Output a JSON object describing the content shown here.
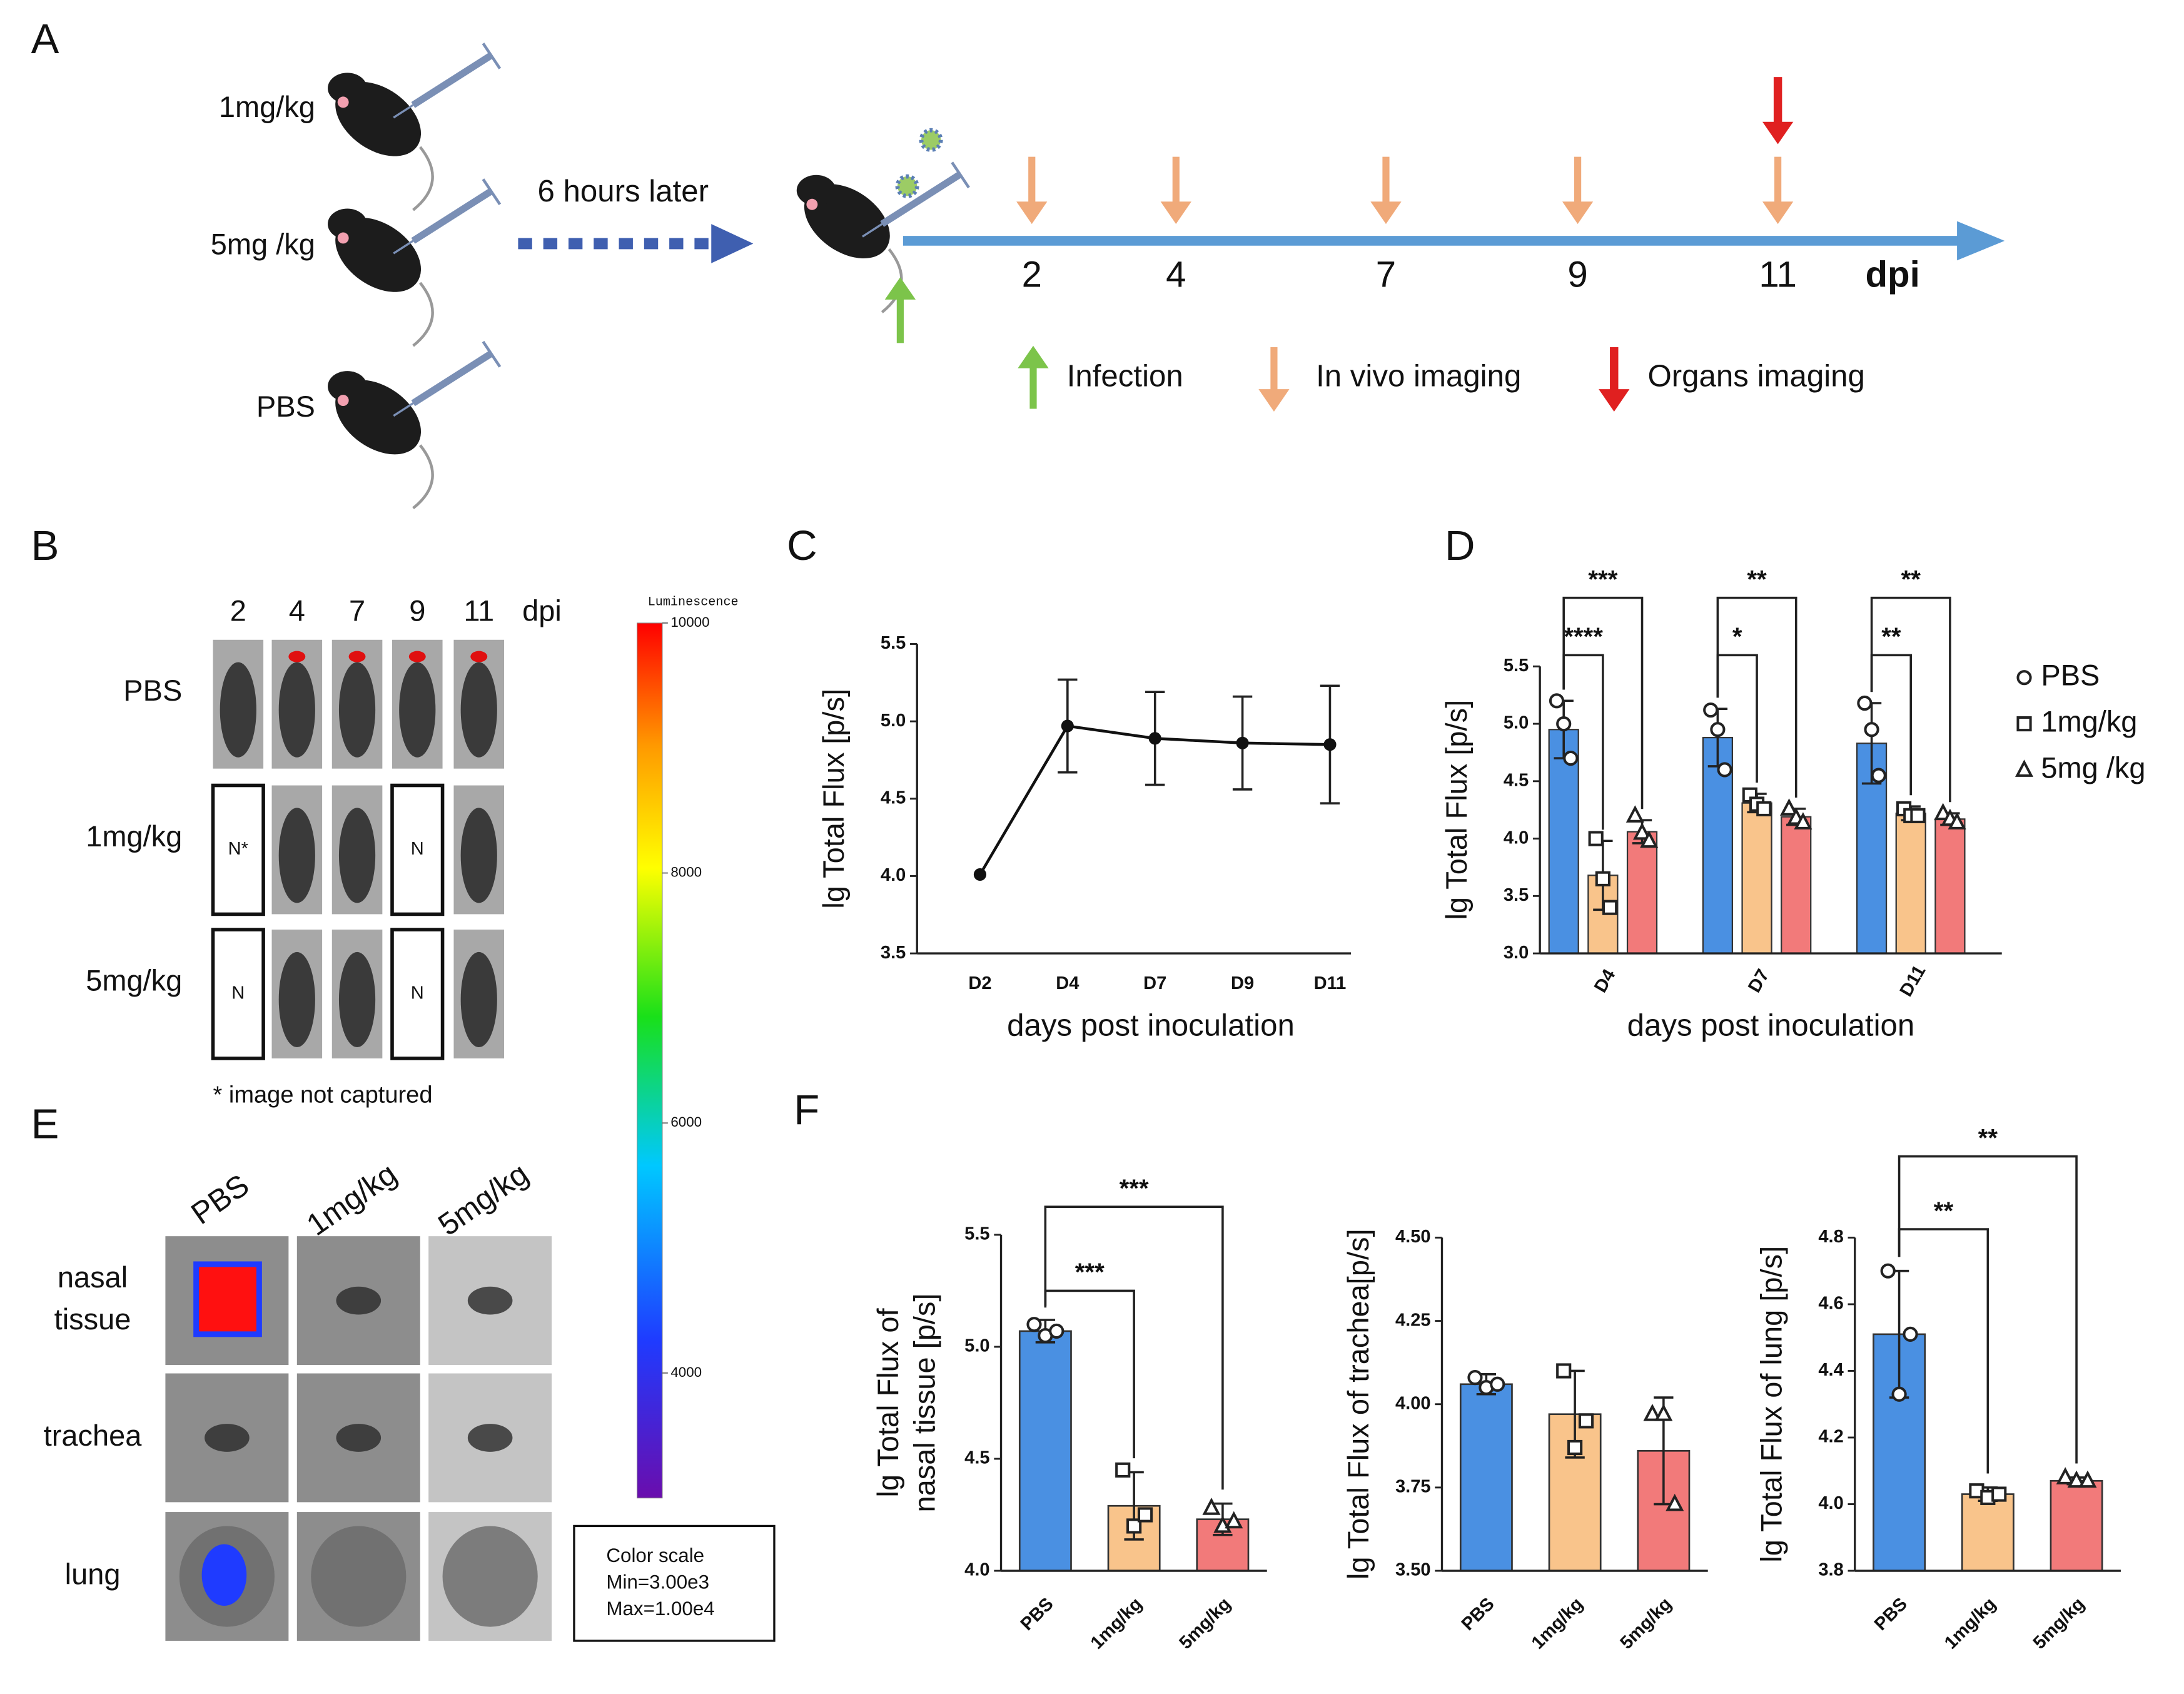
{
  "panel_labels": [
    "A",
    "B",
    "C",
    "D",
    "E",
    "F"
  ],
  "timeline": {
    "groups": [
      "1mg/kg",
      "5mg /kg",
      "PBS"
    ],
    "delay": "6 hours later",
    "days": [
      "2",
      "4",
      "7",
      "9",
      "11"
    ],
    "unit": "dpi",
    "legend": [
      "Infection",
      "In vivo imaging",
      "Organs imaging"
    ]
  },
  "imaging": {
    "days": [
      "2",
      "4",
      "7",
      "9",
      "11"
    ],
    "unit": "dpi",
    "groups": [
      "PBS",
      "1mg/kg",
      "5mg/kg"
    ],
    "missing": [
      "N*",
      "N",
      "N",
      "N"
    ],
    "footnote": "* image not captured",
    "colorbar": {
      "label": "Luminescence",
      "lim": [
        3000,
        10000
      ],
      "ticks": [
        10000,
        8000,
        6000,
        4000
      ]
    },
    "scale_box": [
      "Color scale",
      "Min=3.00e3",
      "Max=1.00e4"
    ]
  },
  "organs": {
    "groups": [
      "PBS",
      "1mg/kg",
      "5mg/kg"
    ],
    "tissues": [
      [
        "nasal",
        "tissue"
      ],
      [
        "trachea"
      ],
      [
        "lung"
      ]
    ]
  },
  "chart_data": [
    {
      "type": "line",
      "categories": [
        "D2",
        "D4",
        "D7",
        "D9",
        "D11"
      ],
      "values": [
        4.01,
        4.97,
        4.89,
        4.86,
        4.85
      ],
      "errors": [
        null,
        0.3,
        0.3,
        0.3,
        0.38
      ],
      "color": "#111111",
      "ylabel": "lg Total Flux [p/s]",
      "xlabel": "days post inoculation",
      "ylim": [
        3.5,
        5.5
      ],
      "yticks": [
        3.5,
        {
          "value": 4,
          "label": "4.0"
        },
        4.5,
        {
          "value": 5,
          "label": "5.0"
        },
        5.5
      ]
    },
    {
      "type": "grouped_bar",
      "categories": [
        "D4",
        "D7",
        "D11"
      ],
      "series": [
        {
          "name": "PBS",
          "color": "#4a90e2",
          "marker": "circle",
          "values": [
            4.95,
            4.88,
            4.83
          ],
          "errors": [
            0.25,
            0.25,
            0.35
          ],
          "points": [
            [
              5.2,
              5.0,
              4.7
            ],
            [
              5.12,
              4.95,
              4.6
            ],
            [
              5.18,
              4.95,
              4.55
            ]
          ]
        },
        {
          "name": "1mg/kg",
          "color": "#f9c48b",
          "marker": "square",
          "values": [
            3.68,
            4.31,
            4.22
          ],
          "errors": [
            0.3,
            0.08,
            0.06
          ],
          "points": [
            [
              4.0,
              3.65,
              3.4
            ],
            [
              4.38,
              4.3,
              4.26
            ],
            [
              4.26,
              4.2,
              4.2
            ]
          ]
        },
        {
          "name": "5mg /kg",
          "color": "#f27a7a",
          "marker": "triangle",
          "values": [
            4.06,
            4.19,
            4.17
          ],
          "errors": [
            0.1,
            0.07,
            0.05
          ],
          "points": [
            [
              4.2,
              4.05,
              3.98
            ],
            [
              4.26,
              4.18,
              4.14
            ],
            [
              4.22,
              4.17,
              4.14
            ]
          ]
        }
      ],
      "significance": [
        {
          "category": "D4",
          "pair": [
            "PBS",
            "1mg/kg"
          ],
          "label": "****"
        },
        {
          "category": "D4",
          "pair": [
            "PBS",
            "5mg /kg"
          ],
          "label": "***"
        },
        {
          "category": "D7",
          "pair": [
            "PBS",
            "1mg/kg"
          ],
          "label": "*"
        },
        {
          "category": "D7",
          "pair": [
            "PBS",
            "5mg /kg"
          ],
          "label": "**"
        },
        {
          "category": "D11",
          "pair": [
            "PBS",
            "1mg/kg"
          ],
          "label": "**"
        },
        {
          "category": "D11",
          "pair": [
            "PBS",
            "5mg /kg"
          ],
          "label": "**"
        }
      ],
      "ylabel": "lg Total Flux [p/s]",
      "xlabel": "days post inoculation",
      "legend": "right",
      "ylim": [
        3,
        5.5
      ],
      "yticks": [
        {
          "value": 3,
          "label": "3.0"
        },
        3.5,
        {
          "value": 4,
          "label": "4.0"
        },
        4.5,
        {
          "value": 5,
          "label": "5.0"
        },
        5.5
      ]
    },
    {
      "type": "bar",
      "categories": [
        "PBS",
        "1mg/kg",
        "5mg/kg"
      ],
      "values": [
        5.07,
        4.29,
        4.23
      ],
      "errors": [
        0.05,
        0.15,
        0.07
      ],
      "points": [
        [
          5.1,
          5.05,
          5.07
        ],
        [
          4.45,
          4.2,
          4.25
        ],
        [
          4.28,
          4.2,
          4.22
        ]
      ],
      "colors": [
        "#4a90e2",
        "#f9c48b",
        "#f27a7a"
      ],
      "markers": [
        "circle",
        "square",
        "triangle"
      ],
      "significance": [
        {
          "pair": [
            "PBS",
            "1mg/kg"
          ],
          "label": "***"
        },
        {
          "pair": [
            "PBS",
            "5mg/kg"
          ],
          "label": "***"
        }
      ],
      "ylabel": [
        "lg Total Flux of",
        "nasal tissue [p/s]"
      ],
      "ylim": [
        4,
        5.5
      ],
      "yticks": [
        {
          "value": 4,
          "label": "4.0"
        },
        4.5,
        {
          "value": 5,
          "label": "5.0"
        },
        5.5
      ]
    },
    {
      "type": "bar",
      "categories": [
        "PBS",
        "1mg/kg",
        "5mg/kg"
      ],
      "values": [
        4.06,
        3.97,
        3.86
      ],
      "errors": [
        0.03,
        0.13,
        0.16
      ],
      "points": [
        [
          4.08,
          4.05,
          4.06
        ],
        [
          4.1,
          3.87,
          3.95
        ],
        [
          3.97,
          3.97,
          3.7
        ]
      ],
      "colors": [
        "#4a90e2",
        "#f9c48b",
        "#f27a7a"
      ],
      "markers": [
        "circle",
        "square",
        "triangle"
      ],
      "ylabel": "lg Total Flux of trachea[p/s]",
      "ylim": [
        3.5,
        4.5
      ],
      "yticks": [
        {
          "value": 3.5,
          "label": "3.50"
        },
        3.75,
        {
          "value": 4,
          "label": "4.00"
        },
        4.25,
        {
          "value": 4.5,
          "label": "4.50"
        }
      ]
    },
    {
      "type": "bar",
      "categories": [
        "PBS",
        "1mg/kg",
        "5mg/kg"
      ],
      "values": [
        4.51,
        4.03,
        4.07
      ],
      "errors": [
        0.19,
        0.02,
        0.01
      ],
      "points": [
        [
          4.7,
          4.33,
          4.51
        ],
        [
          4.04,
          4.02,
          4.03
        ],
        [
          4.08,
          4.07,
          4.07
        ]
      ],
      "colors": [
        "#4a90e2",
        "#f9c48b",
        "#f27a7a"
      ],
      "markers": [
        "circle",
        "square",
        "triangle"
      ],
      "significance": [
        {
          "pair": [
            "PBS",
            "1mg/kg"
          ],
          "label": "**"
        },
        {
          "pair": [
            "PBS",
            "5mg/kg"
          ],
          "label": "**"
        }
      ],
      "ylabel": "lg Total Flux of lung [p/s]",
      "ylim": [
        3.8,
        4.8
      ],
      "yticks": [
        3.8,
        {
          "value": 4,
          "label": "4.0"
        },
        4.2,
        4.4,
        4.6,
        4.8
      ]
    }
  ]
}
